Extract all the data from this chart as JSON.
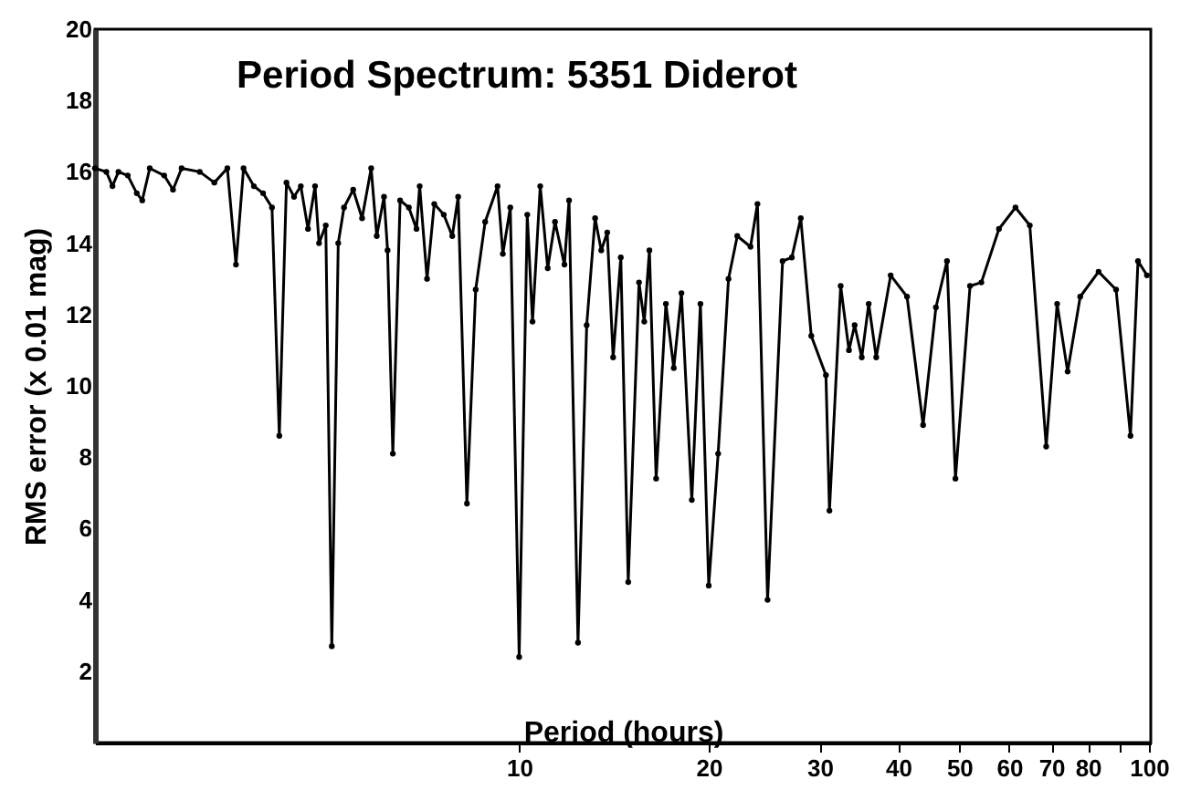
{
  "chart_data": {
    "type": "line",
    "title": "Period Spectrum: 5351 Diderot",
    "xlabel": "Period (hours)",
    "ylabel": "RMS error (x 0.01 mag)",
    "log": "x",
    "marker": "circle",
    "line_style": "solid",
    "grid": false,
    "xlim": [
      2.12,
      100.7
    ],
    "ylim": [
      0,
      20
    ],
    "xticks": [
      10,
      20,
      30,
      40,
      50,
      60,
      70,
      80,
      {
        "value": 90,
        "label": null
      },
      100
    ],
    "yticks": [
      2,
      4,
      6,
      8,
      10,
      12,
      14,
      16,
      18,
      20
    ],
    "series": [
      {
        "color": "#000000",
        "x": [
          2.12,
          2.21,
          2.26,
          2.31,
          2.39,
          2.47,
          2.52,
          2.59,
          2.73,
          2.82,
          2.91,
          3.11,
          3.28,
          3.44,
          3.55,
          3.65,
          3.79,
          3.92,
          4.05,
          4.16,
          4.27,
          4.39,
          4.5,
          4.62,
          4.74,
          4.81,
          4.93,
          5.04,
          5.16,
          5.27,
          5.45,
          5.63,
          5.82,
          5.94,
          6.1,
          6.18,
          6.3,
          6.47,
          6.68,
          6.87,
          6.95,
          7.14,
          7.33,
          7.59,
          7.83,
          8.0,
          8.26,
          8.53,
          8.83,
          9.24,
          9.42,
          9.68,
          10.0,
          10.3,
          10.5,
          10.8,
          11.1,
          11.4,
          11.8,
          12.0,
          12.4,
          12.8,
          13.2,
          13.5,
          13.8,
          14.1,
          14.5,
          14.9,
          15.5,
          15.8,
          16.1,
          16.5,
          17.1,
          17.6,
          18.1,
          18.8,
          19.4,
          20.0,
          20.7,
          21.5,
          22.2,
          23.3,
          23.9,
          24.8,
          26.2,
          27.1,
          28.0,
          29.1,
          30.7,
          31.1,
          32.4,
          33.4,
          34.1,
          35.0,
          35.9,
          36.9,
          38.9,
          41.3,
          43.8,
          45.9,
          47.8,
          49.3,
          52.0,
          54.2,
          57.8,
          61.4,
          64.7,
          68.7,
          71.5,
          74.3,
          77.8,
          83.2,
          88.7,
          93.5,
          96.1,
          99.3
        ],
        "values": [
          16.1,
          16.0,
          15.6,
          16.0,
          15.9,
          15.4,
          15.2,
          16.1,
          15.9,
          15.5,
          16.1,
          16.0,
          15.7,
          16.1,
          13.4,
          16.1,
          15.6,
          15.4,
          15.0,
          8.6,
          15.7,
          15.3,
          15.6,
          14.4,
          15.6,
          14.0,
          14.5,
          2.7,
          14.0,
          15.0,
          15.5,
          14.7,
          16.1,
          14.2,
          15.3,
          13.8,
          8.1,
          15.2,
          15.0,
          14.4,
          15.6,
          13.0,
          15.1,
          14.8,
          14.2,
          15.3,
          6.7,
          12.7,
          14.6,
          15.6,
          13.7,
          15.0,
          2.4,
          14.8,
          11.8,
          15.6,
          13.3,
          14.6,
          13.4,
          15.2,
          2.8,
          11.7,
          14.7,
          13.8,
          14.3,
          10.8,
          13.6,
          4.5,
          12.9,
          11.8,
          13.8,
          7.4,
          12.3,
          10.5,
          12.6,
          6.8,
          12.3,
          4.4,
          8.1,
          13.0,
          14.2,
          13.9,
          15.1,
          4.0,
          13.5,
          13.6,
          14.7,
          11.4,
          10.3,
          6.5,
          12.8,
          11.0,
          11.7,
          10.8,
          12.3,
          10.8,
          13.1,
          12.5,
          8.9,
          12.2,
          13.5,
          7.4,
          12.8,
          12.9,
          14.4,
          15.0,
          14.5,
          8.3,
          12.3,
          10.4,
          12.5,
          13.2,
          12.7,
          8.6,
          13.5,
          13.1
        ]
      }
    ]
  }
}
